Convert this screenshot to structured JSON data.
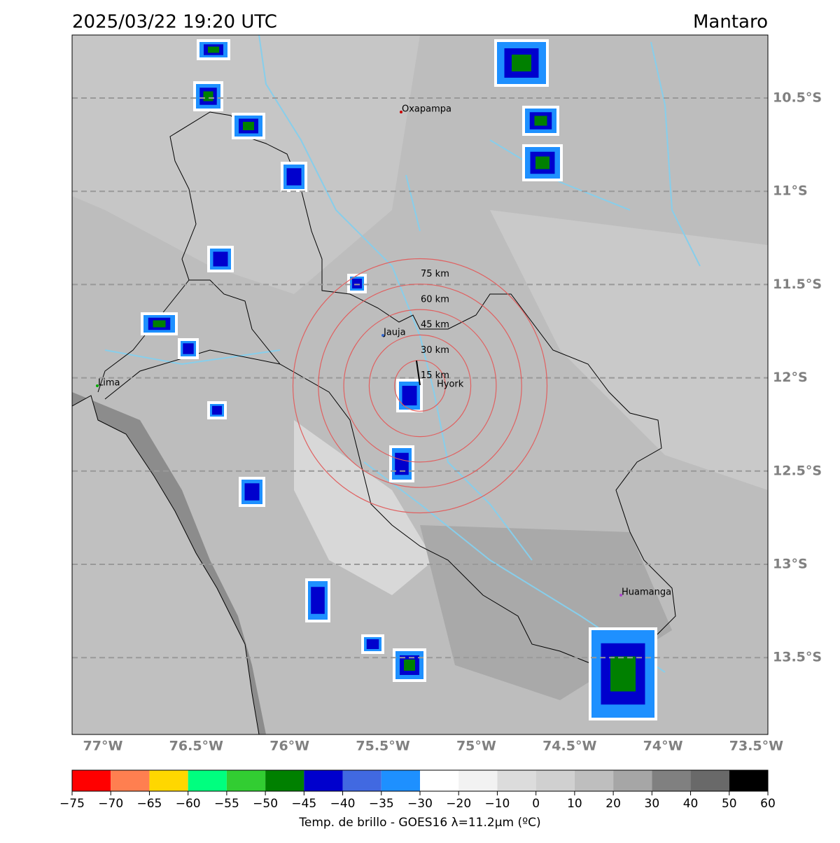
{
  "header": {
    "title": "2025/03/22 19:20 UTC",
    "region": "Mantaro"
  },
  "map": {
    "lat_ticks": [
      {
        "value": -10.5,
        "label": "10.5°S"
      },
      {
        "value": -11,
        "label": "11°S"
      },
      {
        "value": -11.5,
        "label": "11.5°S"
      },
      {
        "value": -12,
        "label": "12°S"
      },
      {
        "value": -12.5,
        "label": "12.5°S"
      },
      {
        "value": -13,
        "label": "13°S"
      },
      {
        "value": -13.5,
        "label": "13.5°S"
      }
    ],
    "lon_ticks": [
      {
        "value": -77,
        "label": "77°W"
      },
      {
        "value": -76.5,
        "label": "76.5°W"
      },
      {
        "value": -76,
        "label": "76°W"
      },
      {
        "value": -75.5,
        "label": "75.5°W"
      },
      {
        "value": -75,
        "label": "75°W"
      },
      {
        "value": -74.5,
        "label": "74.5°W"
      },
      {
        "value": -74,
        "label": "74°W"
      },
      {
        "value": -73.5,
        "label": "73.5°W"
      }
    ],
    "places": [
      "Oxapampa",
      "Jauja",
      "Lima",
      "Hyork",
      "Huamanga"
    ],
    "rings": [
      {
        "value": 15,
        "label": "15 km"
      },
      {
        "value": 30,
        "label": "30 km"
      },
      {
        "value": 45,
        "label": "45 km"
      },
      {
        "value": 60,
        "label": "60 km"
      },
      {
        "value": 75,
        "label": "75 km"
      }
    ]
  },
  "colorbar": {
    "bounds": [
      {
        "value": -75,
        "label": "−75"
      },
      {
        "value": -70,
        "label": "−70"
      },
      {
        "value": -65,
        "label": "−65"
      },
      {
        "value": -60,
        "label": "−60"
      },
      {
        "value": -55,
        "label": "−55"
      },
      {
        "value": -50,
        "label": "−50"
      },
      {
        "value": -45,
        "label": "−45"
      },
      {
        "value": -40,
        "label": "−40"
      },
      {
        "value": -35,
        "label": "−35"
      },
      {
        "value": -30,
        "label": "−30"
      },
      {
        "value": -20,
        "label": "−20"
      },
      {
        "value": -10,
        "label": "−10"
      },
      0,
      10,
      20,
      30,
      40,
      50,
      60
    ],
    "colors": [
      "#ff0000",
      "#ff7f50",
      "#ffd700",
      "#00ff7f",
      "#32cd32",
      "#008000",
      "#0000cd",
      "#4169e1",
      "#1e90ff",
      "#ffffff",
      "#f2f2f2",
      "#dcdcdc",
      "#d0d0d0",
      "#bebebe",
      "#a6a6a6",
      "#808080",
      "#696969",
      "#000000"
    ],
    "label": "Temp. de brillo - GOES16 λ=11.2μm (ºC)"
  }
}
